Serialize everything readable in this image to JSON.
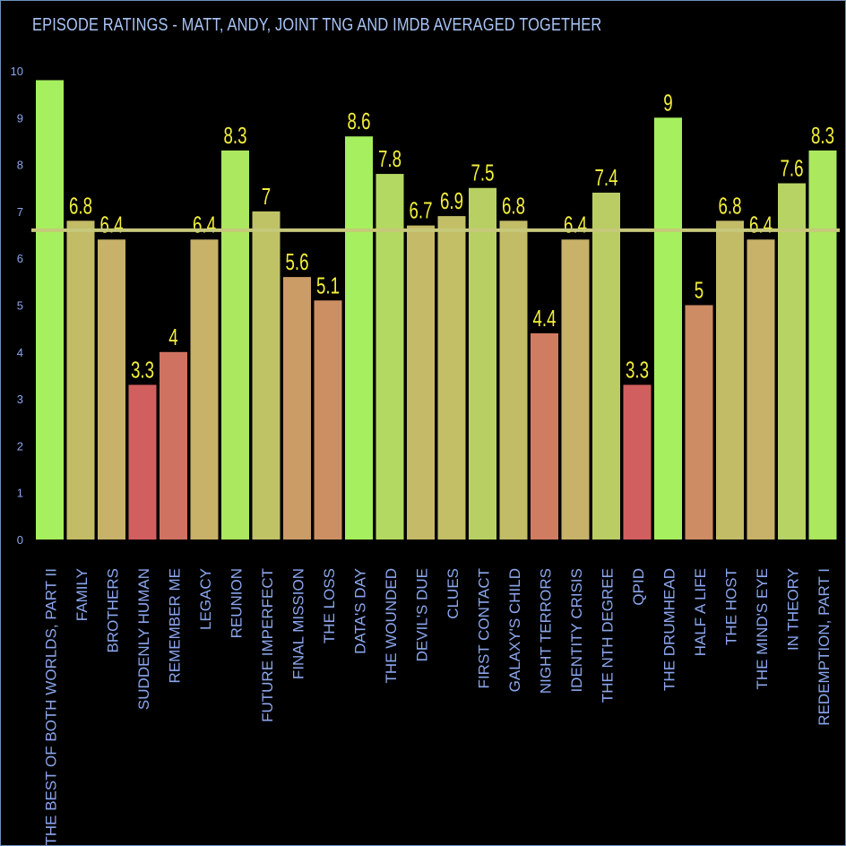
{
  "chart_data": {
    "type": "bar",
    "title": "EPISODE RATINGS - MATT, ANDY, JOINT TNG AND IMDB AVERAGED TOGETHER",
    "xlabel": "",
    "ylabel": "",
    "ylim": [
      0,
      10
    ],
    "yticks": [
      0,
      1,
      2,
      3,
      4,
      5,
      6,
      7,
      8,
      9,
      10
    ],
    "grid": false,
    "legend": "none",
    "reference_line": 6.6,
    "categories": [
      "THE BEST OF BOTH WORLDS, PART II",
      "FAMILY",
      "BROTHERS",
      "SUDDENLY HUMAN",
      "REMEMBER ME",
      "LEGACY",
      "REUNION",
      "FUTURE IMPERFECT",
      "FINAL MISSION",
      "THE LOSS",
      "DATA'S DAY",
      "THE WOUNDED",
      "DEVIL'S DUE",
      "CLUES",
      "FIRST CONTACT",
      "GALAXY'S CHILD",
      "NIGHT TERRORS",
      "IDENTITY CRISIS",
      "THE NTH DEGREE",
      "QPID",
      "THE DRUMHEAD",
      "HALF A LIFE",
      "THE HOST",
      "THE MIND'S EYE",
      "IN THEORY",
      "REDEMPTION, PART I"
    ],
    "values": [
      9.8,
      6.8,
      6.4,
      3.3,
      4,
      6.4,
      8.3,
      7,
      5.6,
      5.1,
      8.6,
      7.8,
      6.7,
      6.9,
      7.5,
      6.8,
      4.4,
      6.4,
      7.4,
      3.3,
      9,
      5,
      6.8,
      6.4,
      7.6,
      8.3
    ],
    "value_labels": [
      "",
      "6.8",
      "6.4",
      "3.3",
      "4",
      "6.4",
      "8.3",
      "7",
      "5.6",
      "5.1",
      "8.6",
      "7.8",
      "6.7",
      "6.9",
      "7.5",
      "6.8",
      "4.4",
      "6.4",
      "7.4",
      "3.3",
      "9",
      "5",
      "6.8",
      "6.4",
      "7.6",
      "8.3"
    ],
    "colors": {
      "background": "#000000",
      "title": "#a9c4f5",
      "axis_labels": "#8ba6ee",
      "value_labels": "#f4f03a",
      "reference_line": "#c6c87a",
      "bar_low": "#d25f5f",
      "bar_mid": "#c8b468",
      "bar_high": "#a6ef5e"
    }
  }
}
